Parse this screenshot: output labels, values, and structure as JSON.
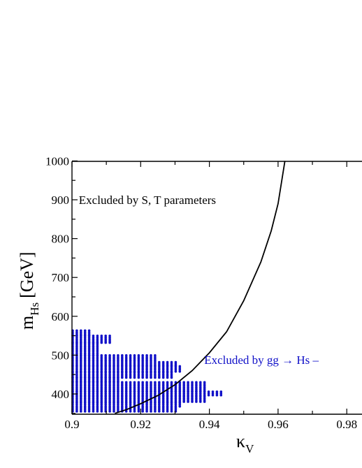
{
  "chart_data": {
    "type": "scatter",
    "xlabel": "κ",
    "xlabel_sub": "V",
    "ylabel": "m",
    "ylabel_sub": "Hs",
    "ylabel_unit": "[GeV]",
    "xlim": [
      0.9,
      0.985
    ],
    "ylim": [
      350,
      1000
    ],
    "x_ticks": [
      "0.9",
      "0.92",
      "0.94",
      "0.96",
      "0.98"
    ],
    "y_ticks": [
      "400",
      "500",
      "600",
      "700",
      "800",
      "900",
      "1000"
    ],
    "grid": false,
    "series": [
      {
        "kind": "curve",
        "color": "#000000",
        "x": [
          0.9125,
          0.916,
          0.92,
          0.925,
          0.93,
          0.935,
          0.94,
          0.945,
          0.95,
          0.955,
          0.958,
          0.96,
          0.962
        ],
        "y": [
          350,
          360,
          375,
          396,
          424,
          460,
          506,
          560,
          640,
          740,
          820,
          890,
          1000
        ]
      },
      {
        "kind": "scan-points",
        "color": "#1010c8",
        "rows": [
          {
            "y_min": 355,
            "y_max": 368,
            "x_max": 0.9305
          },
          {
            "y_min": 368,
            "y_max": 380,
            "x_max": 0.9315
          },
          {
            "y_min": 380,
            "y_max": 397,
            "x_max": 0.939
          },
          {
            "y_min": 397,
            "y_max": 408,
            "x_max": 0.9445
          },
          {
            "y_min": 408,
            "y_max": 432,
            "x_max": 0.939
          },
          {
            "y_min": 432,
            "y_max": 442,
            "x_max": 0.914
          },
          {
            "y_min": 442,
            "y_max": 458,
            "x_max": 0.9295
          },
          {
            "y_min": 458,
            "y_max": 473,
            "x_max": 0.932
          },
          {
            "y_min": 473,
            "y_max": 486,
            "x_max": 0.9305
          },
          {
            "y_min": 486,
            "y_max": 500,
            "x_max": 0.9245
          },
          {
            "y_min": 500,
            "y_max": 532,
            "x_max": 0.9085
          },
          {
            "y_min": 532,
            "y_max": 550,
            "x_max": 0.9115
          },
          {
            "y_min": 550,
            "y_max": 565,
            "x_max": 0.9055
          }
        ]
      }
    ],
    "annotations": [
      {
        "text": "Excluded by S, T parameters",
        "x": 0.902,
        "y": 900,
        "color": "#000000"
      },
      {
        "text": "Excluded by gg → Hs –",
        "x": 0.9385,
        "y": 488,
        "color": "#1010c8"
      }
    ]
  }
}
